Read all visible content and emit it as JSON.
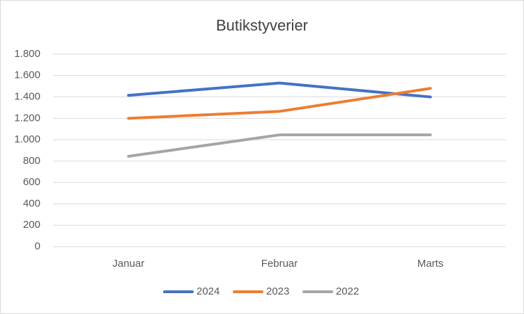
{
  "chart_data": {
    "type": "line",
    "title": "Butikstyverier",
    "categories": [
      "Januar",
      "Februar",
      "Marts"
    ],
    "series": [
      {
        "name": "2024",
        "color": "#4472c4",
        "values": [
          1415,
          1530,
          1400
        ]
      },
      {
        "name": "2023",
        "color": "#ed7d31",
        "values": [
          1200,
          1265,
          1480
        ]
      },
      {
        "name": "2022",
        "color": "#a5a5a5",
        "values": [
          845,
          1045,
          1045
        ]
      }
    ],
    "ylim": [
      0,
      1800
    ],
    "yticks": [
      0,
      200,
      400,
      600,
      800,
      {
        "value": 1000,
        "label": "1.000"
      },
      {
        "value": 1200,
        "label": "1.200"
      },
      {
        "value": 1400,
        "label": "1.400"
      },
      {
        "value": 1600,
        "label": "1.600"
      },
      {
        "value": 1800,
        "label": "1.800"
      }
    ],
    "grid": true,
    "legend": "bottom"
  }
}
